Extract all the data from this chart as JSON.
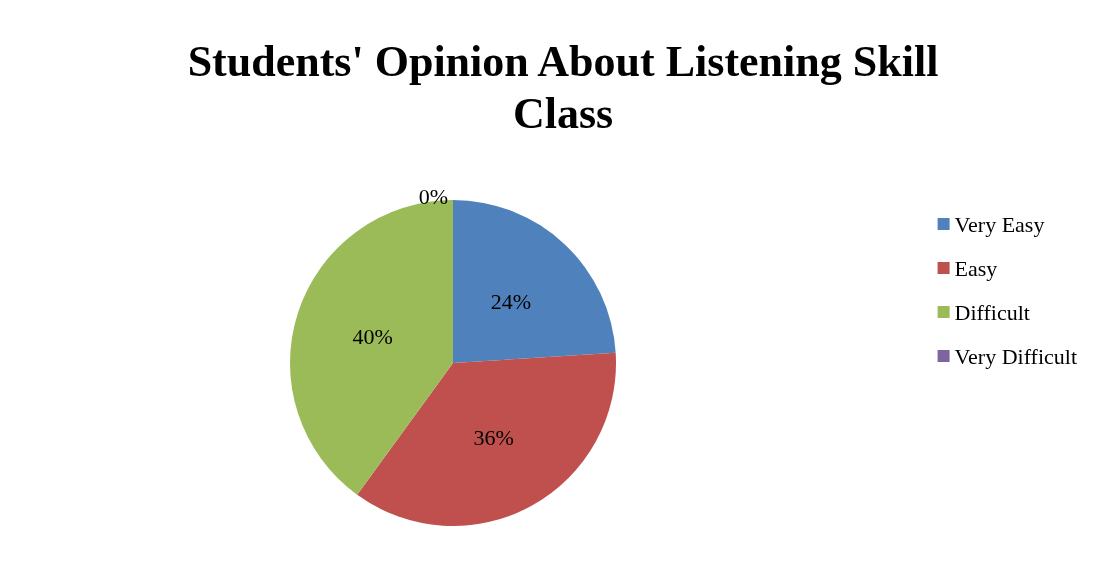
{
  "chart_data": {
    "type": "pie",
    "title": "Students' Opinion About Listening Skill\nClass",
    "categories": [
      "Very Easy",
      "Easy",
      "Difficult",
      "Very Difficult"
    ],
    "values": [
      24,
      36,
      40,
      0
    ],
    "value_labels": [
      "24%",
      "36%",
      "40%",
      "0%"
    ],
    "colors": [
      "#4f81bd",
      "#c0504d",
      "#9bbb59",
      "#8064a2"
    ],
    "legend": "right"
  }
}
